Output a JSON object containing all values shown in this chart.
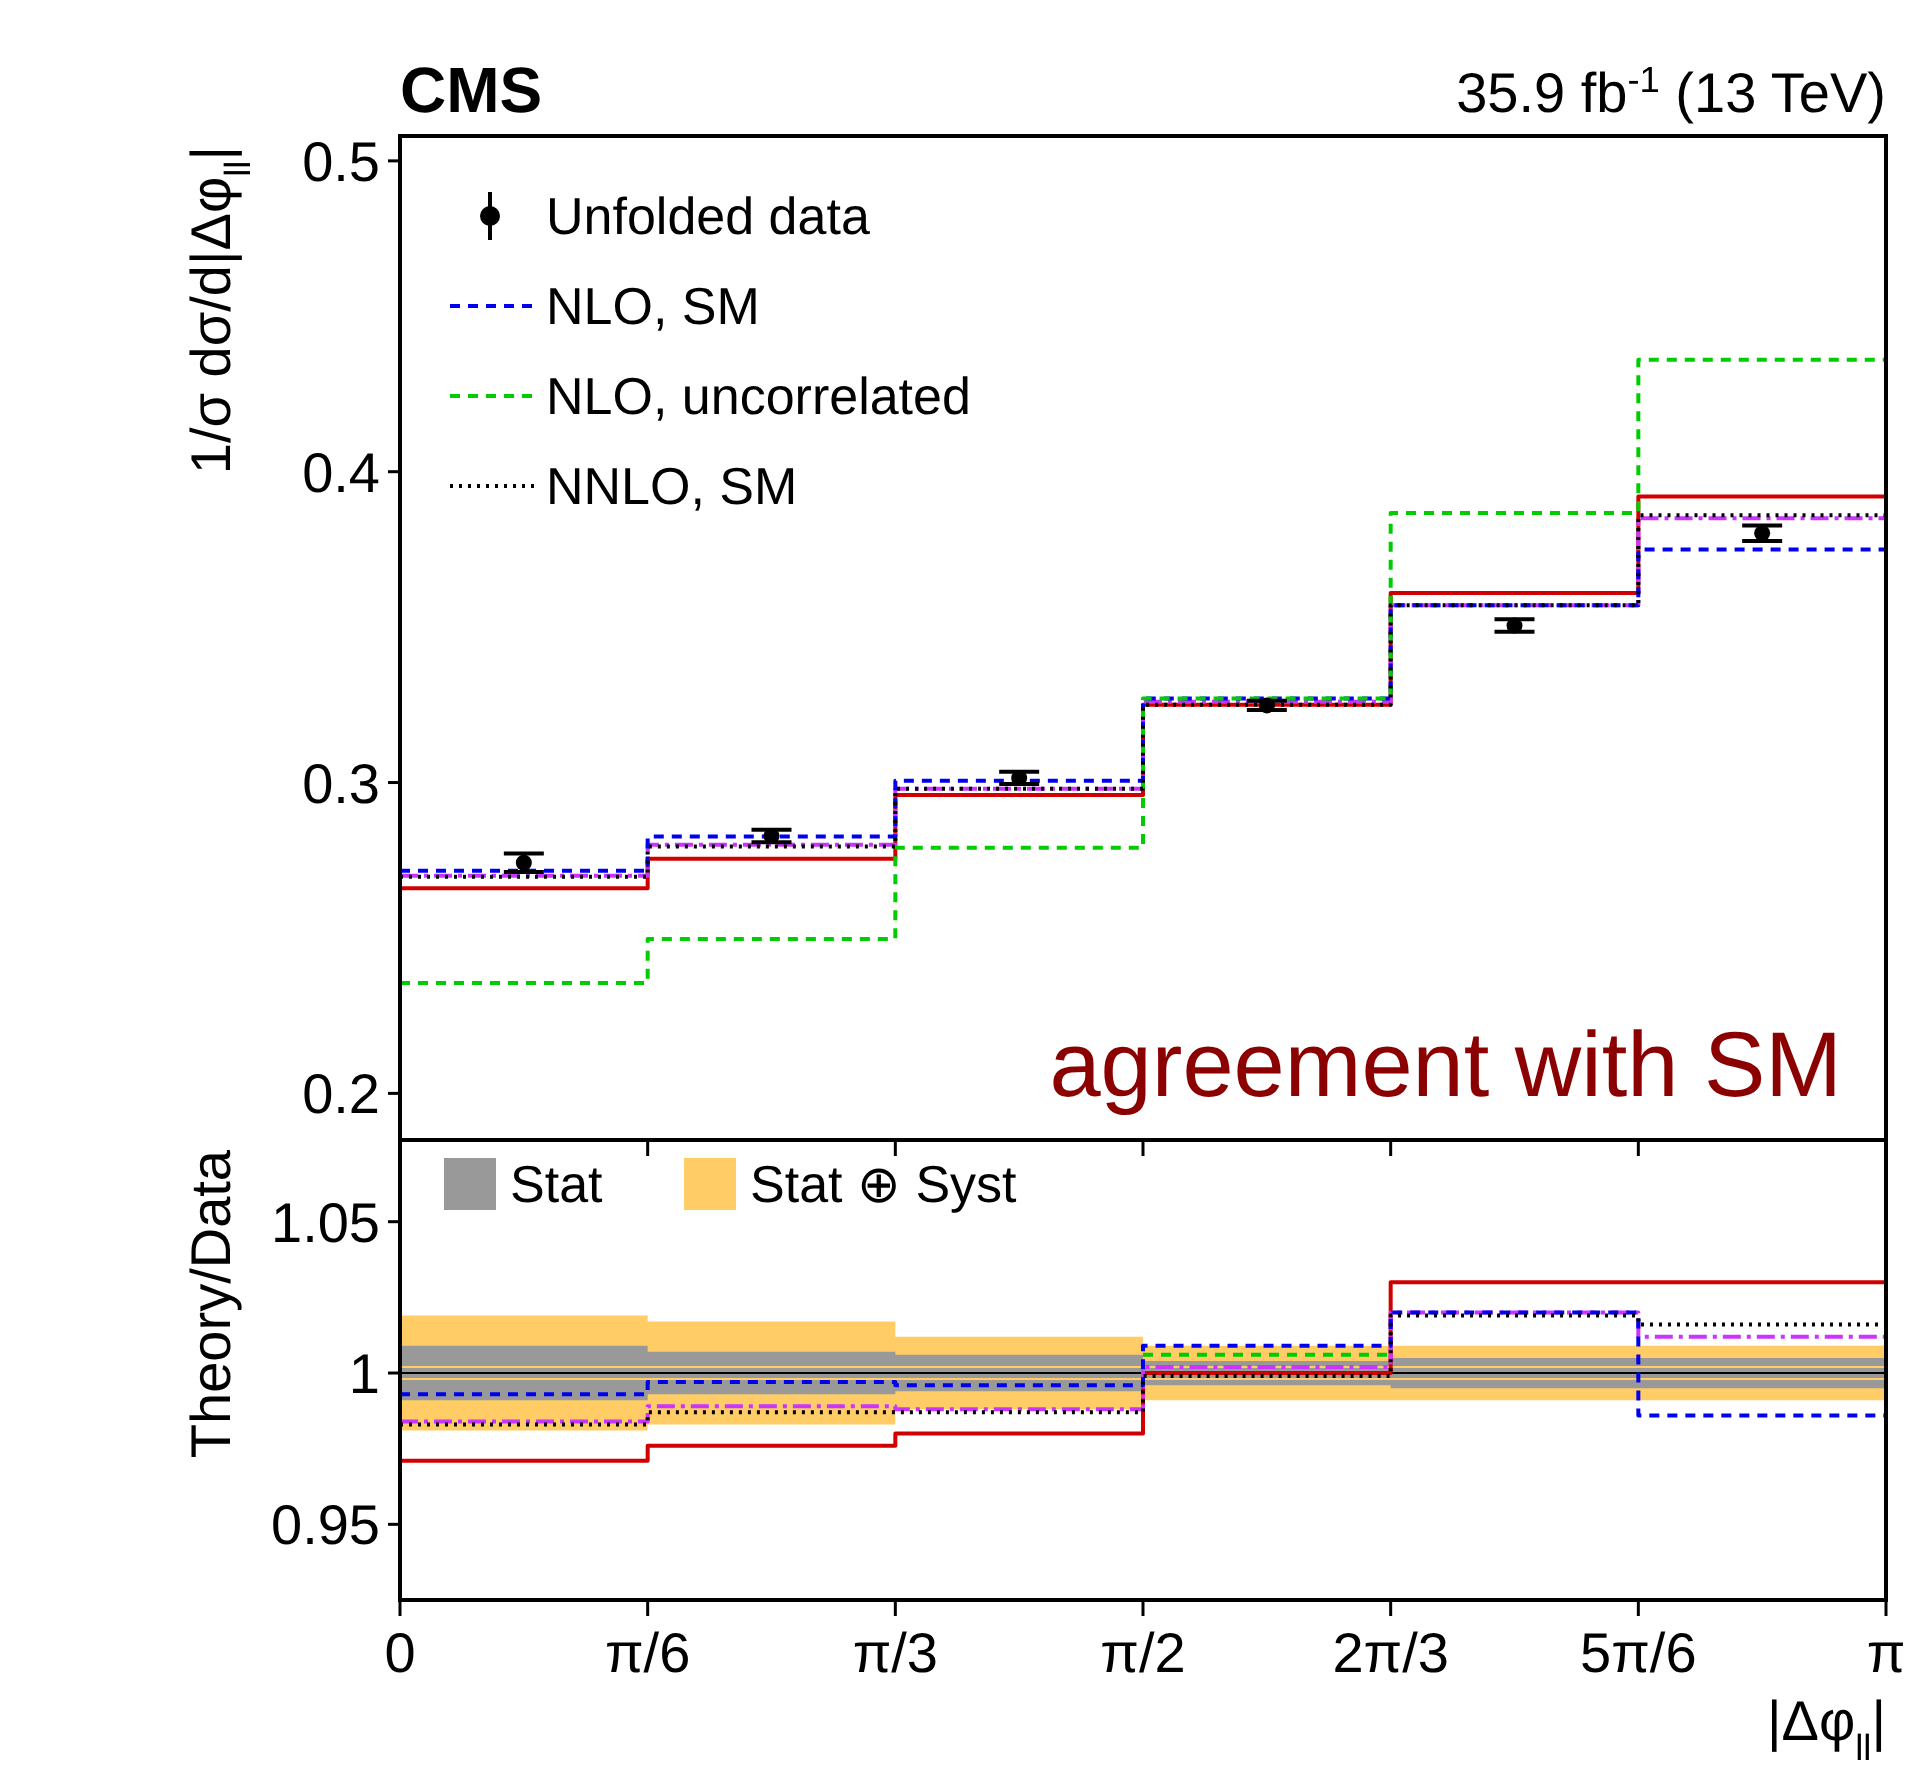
{
  "chart_data": [
    {
      "type": "step",
      "title": "CMS",
      "subtitle": "35.9 fb$^{-1}$ (13 TeV)",
      "ylabel": "1/σ dσ/d|Δφ$_{ll}$|",
      "xlim": [
        0,
        3.1416
      ],
      "xticks": [
        {
          "value": 0,
          "label": null
        },
        {
          "value": 0.5236,
          "label": null
        },
        {
          "value": 1.0472,
          "label": null
        },
        {
          "value": 1.5708,
          "label": null
        },
        {
          "value": 2.0944,
          "label": null
        },
        {
          "value": 2.618,
          "label": null
        },
        {
          "value": 3.1416,
          "label": null
        }
      ],
      "ylim": [
        0.185,
        0.508
      ],
      "yticks": [
        0.2,
        0.3,
        0.4,
        0.5
      ],
      "tick_labels": "y",
      "grid": false,
      "legend": "top left",
      "annotations": [
        "agreement with SM"
      ],
      "series": [
        {
          "color": "#d00000",
          "line_style": "solid",
          "x": [
            0,
            0.5236,
            1.0472,
            1.5708,
            2.0944,
            2.618,
            3.1416
          ],
          "values": [
            0.266,
            0.2755,
            0.296,
            0.325,
            0.361,
            0.392,
            0.392
          ]
        },
        {
          "color": "#cc33ff",
          "line_style": "dashdot",
          "x": [
            0,
            0.5236,
            1.0472,
            1.5708,
            2.0944,
            2.618,
            3.1416
          ],
          "values": [
            0.27,
            0.28,
            0.298,
            0.326,
            0.357,
            0.385,
            0.385
          ]
        },
        {
          "name": "NLO, SM",
          "color": "#0000ee",
          "line_style": "dashed",
          "x": [
            0,
            0.5236,
            1.0472,
            1.5708,
            2.0944,
            2.618,
            3.1416
          ],
          "values": [
            0.2716,
            0.2826,
            0.3006,
            0.327,
            0.357,
            0.375,
            0.375
          ]
        },
        {
          "name": "NLO, uncorrelated",
          "color": "#00cc00",
          "line_style": "dashed",
          "x": [
            0,
            0.5236,
            1.0472,
            1.5708,
            2.0944,
            2.618,
            3.1416
          ],
          "values": [
            0.2355,
            0.2497,
            0.279,
            0.327,
            0.3867,
            0.436,
            0.436
          ]
        },
        {
          "name": "NNLO, SM",
          "color": "#000000",
          "line_style": "dotted",
          "x": [
            0,
            0.5236,
            1.0472,
            1.5708,
            2.0944,
            2.618,
            3.1416
          ],
          "values": [
            0.2697,
            0.2794,
            0.298,
            0.325,
            0.357,
            0.386,
            0.386
          ]
        },
        {
          "type": "scatter",
          "name": "Unfolded data",
          "color": "#000000",
          "marker": "circle",
          "x": [
            0.2618,
            0.7854,
            1.309,
            1.8326,
            2.3562,
            2.8798
          ],
          "values": [
            0.2742,
            0.2828,
            0.3015,
            0.3248,
            0.3505,
            0.3802
          ],
          "errors": [
            0.003,
            0.002,
            0.002,
            0.0015,
            0.002,
            0.0025
          ]
        }
      ]
    },
    {
      "type": "step",
      "xlabel": "|Δφ$_{ll}$|",
      "ylabel": "Theory/Data",
      "xlim": [
        0,
        3.1416
      ],
      "xticks": [
        {
          "value": 0,
          "label": "0"
        },
        {
          "value": 0.5236,
          "label": "π/6"
        },
        {
          "value": 1.0472,
          "label": "π/3"
        },
        {
          "value": 1.5708,
          "label": "π/2"
        },
        {
          "value": 2.0944,
          "label": "2π/3"
        },
        {
          "value": 2.618,
          "label": "5π/6"
        },
        {
          "value": 3.1416,
          "label": "π"
        }
      ],
      "ylim": [
        0.925,
        1.077
      ],
      "yticks": [
        0.95,
        1,
        1.05
      ],
      "grid": false,
      "legend": "top left",
      "ref_lines": [
        {
          "axis": "y",
          "value": 1,
          "color": "#000000"
        }
      ],
      "series": [
        {
          "name": "Stat ⊕ Syst",
          "color": "#ffcc66",
          "x": [
            0,
            0.5236,
            1.0472,
            1.5708,
            2.0944,
            2.618,
            3.1416
          ],
          "values": [
            1,
            1,
            1,
            1,
            1,
            1,
            1
          ],
          "lower": [
            0.981,
            0.983,
            0.988,
            0.991,
            0.991,
            0.991,
            0.991
          ],
          "upper": [
            1.019,
            1.017,
            1.012,
            1.009,
            1.009,
            1.009,
            1.009
          ]
        },
        {
          "name": "Stat",
          "color": "#999999",
          "x": [
            0,
            0.5236,
            1.0472,
            1.5708,
            2.0944,
            2.618,
            3.1416
          ],
          "values": [
            1,
            1,
            1,
            1,
            1,
            1,
            1
          ],
          "lower": [
            0.991,
            0.993,
            0.994,
            0.996,
            0.995,
            0.995,
            0.995
          ],
          "upper": [
            1.009,
            1.007,
            1.006,
            1.004,
            1.005,
            1.005,
            1.005
          ]
        },
        {
          "color": "#d00000",
          "line_style": "solid",
          "x": [
            0,
            0.5236,
            1.0472,
            1.5708,
            2.0944,
            2.618,
            3.1416
          ],
          "values": [
            0.971,
            0.976,
            0.98,
            1.0,
            1.03,
            1.03,
            1.03
          ]
        },
        {
          "color": "#cc33ff",
          "line_style": "dashdot",
          "x": [
            0,
            0.5236,
            1.0472,
            1.5708,
            2.0944,
            2.618,
            3.1416
          ],
          "values": [
            0.984,
            0.989,
            0.988,
            1.002,
            1.02,
            1.012,
            1.012
          ]
        },
        {
          "color": "#0000ee",
          "line_style": "dashed",
          "x": [
            0,
            0.5236,
            1.0472,
            1.5708,
            2.0944,
            2.618,
            3.1416
          ],
          "values": [
            0.993,
            0.997,
            0.996,
            1.009,
            1.02,
            0.986,
            0.986
          ]
        },
        {
          "color": "#00cc00",
          "line_style": "dashed",
          "x": [
            1.5708,
            2.0944
          ],
          "values": [
            1.006,
            1.006
          ]
        },
        {
          "color": "#000000",
          "line_style": "dotted",
          "x": [
            0,
            0.5236,
            1.0472,
            1.5708,
            2.0944,
            2.618,
            3.1416
          ],
          "values": [
            0.983,
            0.987,
            0.987,
            0.999,
            1.019,
            1.016,
            1.016
          ]
        }
      ]
    }
  ]
}
